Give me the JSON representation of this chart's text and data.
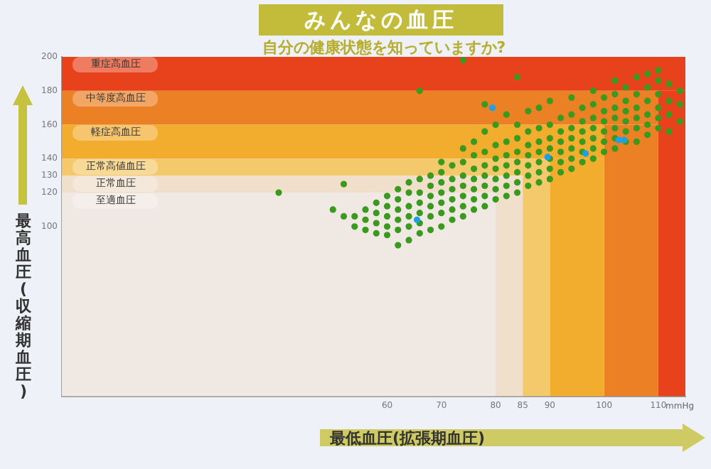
{
  "chart_data": {
    "type": "scatter",
    "title": "みんなの血圧",
    "subtitle": "自分の健康状態を知っていますか?",
    "xlabel": "最低血圧(拡張期血圧)",
    "ylabel": "最高血圧(収縮期血圧)",
    "annotations": [
      "mmHg"
    ],
    "xlim": [
      0,
      115
    ],
    "ylim": [
      0,
      200
    ],
    "xticks": [
      60,
      70,
      80,
      85,
      90,
      100,
      110
    ],
    "yticks": [
      100,
      120,
      130,
      140,
      160,
      180,
      200
    ],
    "grid": false,
    "legend": false,
    "marker": "circle",
    "bands": [
      {
        "axis": "y",
        "from": 180,
        "to": 200,
        "label": "重症高血圧",
        "color": "#e8421c"
      },
      {
        "axis": "y",
        "from": 160,
        "to": 180,
        "label": "中等度高血圧",
        "color": "#ec8024"
      },
      {
        "axis": "y",
        "from": 140,
        "to": 160,
        "label": "軽症高血圧",
        "color": "#f2ac2e"
      },
      {
        "axis": "y",
        "from": 130,
        "to": 140,
        "label": "正常高値血圧",
        "color": "#f4c96c"
      },
      {
        "axis": "y",
        "from": 120,
        "to": 130,
        "label": "正常血圧",
        "color": "#f0dfcb"
      },
      {
        "axis": "y",
        "from": 0,
        "to": 120,
        "label": "至適血圧",
        "color": "#f0e8e3"
      },
      {
        "axis": "x",
        "from": 110,
        "to": 115,
        "color": "#e8421c"
      },
      {
        "axis": "x",
        "from": 100,
        "to": 110,
        "color": "#ec8024"
      },
      {
        "axis": "x",
        "from": 90,
        "to": 100,
        "color": "#f2ac2e"
      },
      {
        "axis": "x",
        "from": 85,
        "to": 90,
        "color": "#f4c96c"
      },
      {
        "axis": "x",
        "from": 80,
        "to": 85,
        "color": "#f0dfcb"
      }
    ],
    "series": [
      {
        "color": "#3a9a1e",
        "x": [
          40,
          50,
          52,
          52,
          54,
          54,
          56,
          56,
          56,
          58,
          58,
          58,
          58,
          60,
          60,
          60,
          60,
          60,
          62,
          62,
          62,
          62,
          62,
          62,
          64,
          64,
          64,
          64,
          64,
          64,
          66,
          66,
          66,
          66,
          66,
          66,
          66,
          68,
          68,
          68,
          68,
          68,
          68,
          70,
          70,
          70,
          70,
          70,
          70,
          70,
          72,
          72,
          72,
          72,
          72,
          72,
          74,
          74,
          74,
          74,
          74,
          74,
          74,
          74,
          76,
          76,
          76,
          76,
          76,
          76,
          76,
          78,
          78,
          78,
          78,
          78,
          78,
          78,
          78,
          80,
          80,
          80,
          80,
          80,
          80,
          80,
          82,
          82,
          82,
          82,
          82,
          82,
          82,
          84,
          84,
          84,
          84,
          84,
          84,
          84,
          84,
          86,
          86,
          86,
          86,
          86,
          86,
          86,
          88,
          88,
          88,
          88,
          88,
          88,
          88,
          90,
          90,
          90,
          90,
          90,
          90,
          90,
          92,
          92,
          92,
          92,
          92,
          92,
          94,
          94,
          94,
          94,
          94,
          94,
          94,
          96,
          96,
          96,
          96,
          96,
          96,
          98,
          98,
          98,
          98,
          98,
          98,
          98,
          100,
          100,
          100,
          100,
          100,
          100,
          102,
          102,
          102,
          102,
          102,
          102,
          102,
          104,
          104,
          104,
          104,
          104,
          104,
          106,
          106,
          106,
          106,
          106,
          106,
          108,
          108,
          108,
          108,
          108,
          108,
          110,
          110,
          110,
          110,
          110,
          110,
          112,
          112,
          112,
          112,
          114,
          114,
          114
        ],
        "values": [
          120,
          110,
          106,
          125,
          100,
          106,
          98,
          104,
          110,
          96,
          102,
          108,
          114,
          95,
          100,
          106,
          112,
          118,
          89,
          98,
          104,
          110,
          116,
          122,
          92,
          100,
          106,
          112,
          120,
          126,
          96,
          102,
          108,
          114,
          120,
          128,
          180,
          98,
          106,
          112,
          118,
          124,
          130,
          100,
          108,
          114,
          120,
          126,
          132,
          138,
          104,
          110,
          116,
          122,
          128,
          136,
          106,
          112,
          118,
          124,
          130,
          138,
          146,
          198,
          110,
          116,
          122,
          128,
          134,
          142,
          150,
          112,
          118,
          124,
          130,
          136,
          144,
          156,
          172,
          116,
          122,
          128,
          134,
          140,
          148,
          160,
          118,
          124,
          130,
          136,
          142,
          150,
          166,
          120,
          126,
          132,
          138,
          144,
          152,
          160,
          188,
          124,
          130,
          136,
          142,
          148,
          156,
          168,
          126,
          132,
          138,
          144,
          150,
          158,
          170,
          128,
          134,
          140,
          146,
          152,
          160,
          174,
          132,
          138,
          144,
          150,
          156,
          164,
          134,
          140,
          146,
          152,
          158,
          166,
          176,
          138,
          144,
          150,
          156,
          162,
          170,
          140,
          146,
          152,
          158,
          164,
          172,
          180,
          144,
          150,
          156,
          162,
          168,
          176,
          146,
          152,
          158,
          164,
          170,
          178,
          186,
          150,
          156,
          162,
          168,
          174,
          182,
          150,
          158,
          164,
          170,
          178,
          188,
          154,
          160,
          166,
          174,
          182,
          190,
          158,
          164,
          170,
          178,
          186,
          192,
          156,
          166,
          174,
          184,
          162,
          172,
          180
        ]
      },
      {
        "color": "#1ea0e6",
        "x": [
          65.5,
          79.4,
          89.6,
          96.6,
          102.7,
          103.7
        ],
        "values": [
          104,
          170,
          141,
          143,
          151,
          151
        ]
      }
    ]
  }
}
